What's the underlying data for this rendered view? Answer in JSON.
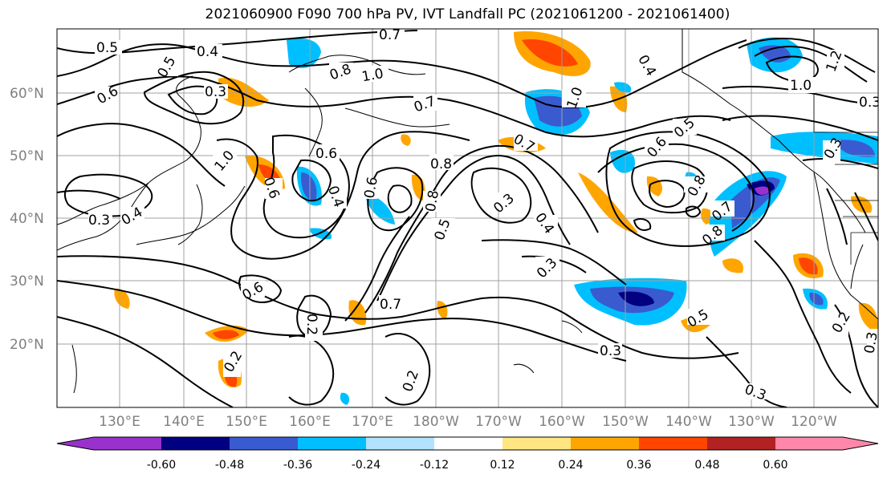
{
  "title": "2021060900 F090 700 hPa PV, IVT Landfall PC (2021061200 - 2021061400)",
  "map": {
    "lat_ticks": [
      "60°N",
      "50°N",
      "40°N",
      "30°N",
      "20°N"
    ],
    "lon_ticks": [
      "130°E",
      "140°E",
      "150°E",
      "160°E",
      "170°E",
      "180°W",
      "170°W",
      "160°W",
      "150°W",
      "140°W",
      "130°W",
      "120°W"
    ],
    "contour_labels": [
      "0.5",
      "0.4",
      "0.5",
      "0.3",
      "0.6",
      "0.8",
      "1.0",
      "0.7",
      "0.7",
      "0.8",
      "1.0",
      "0.4",
      "0.5",
      "0.6",
      "0.7",
      "1.0",
      "0.6",
      "0.8",
      "0.6",
      "0.4",
      "0.6",
      "0.3",
      "0.4",
      "0.3",
      "0.8",
      "0.5",
      "0.4",
      "0.3",
      "0.8",
      "0.7",
      "0.3",
      "0.6",
      "0.7",
      "0.2",
      "0.2",
      "0.2",
      "0.3",
      "0.5",
      "0.3",
      "0.2",
      "0.3",
      "1.0",
      "1.2",
      "0.3"
    ]
  },
  "colorbar": {
    "ticks": [
      "-0.60",
      "-0.48",
      "-0.36",
      "-0.24",
      "-0.12",
      "0.12",
      "0.24",
      "0.36",
      "0.48",
      "0.60"
    ],
    "colors": [
      "#9932cc",
      "#000080",
      "#3a5bd0",
      "#00bfff",
      "#b2e2ff",
      "#ffffff",
      "#ffe680",
      "#ffa500",
      "#ff4500",
      "#b22222",
      "#ff88aa"
    ]
  }
}
